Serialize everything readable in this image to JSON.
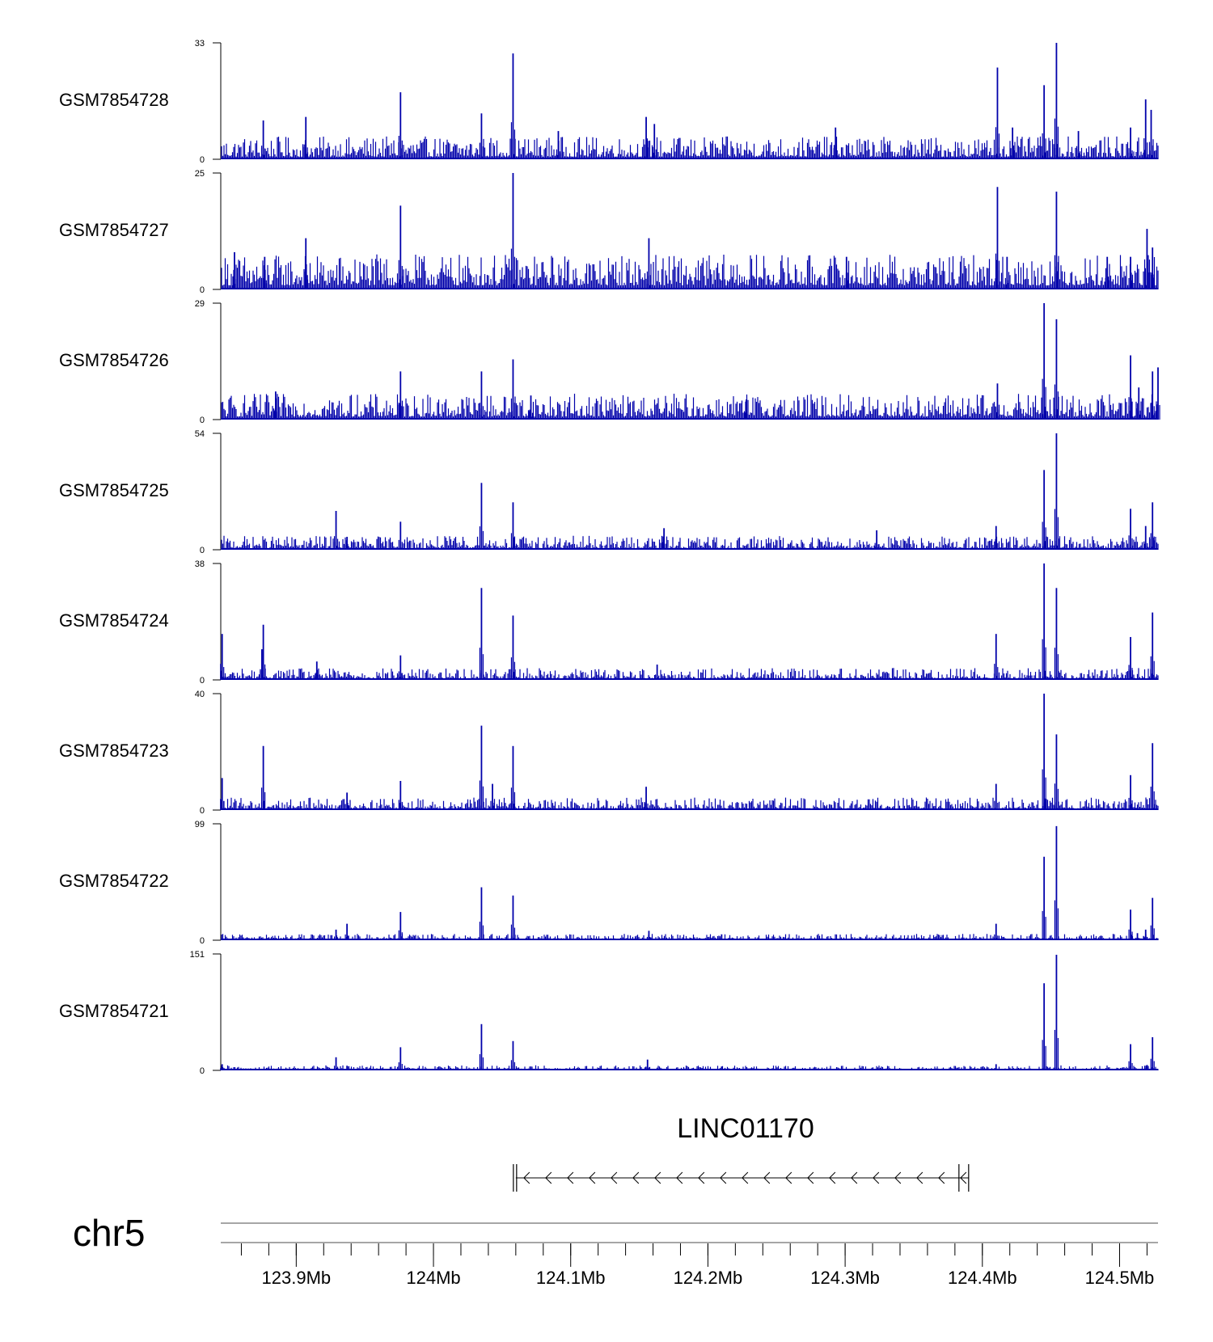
{
  "chart_data": {
    "type": "area",
    "title": "",
    "chromosome": "chr5",
    "x_range_mb": [
      123.845,
      124.528
    ],
    "x_ticks": [
      {
        "value": 123.9,
        "label": "123.9Mb"
      },
      {
        "value": 124.0,
        "label": "124Mb"
      },
      {
        "value": 124.1,
        "label": "124.1Mb"
      },
      {
        "value": 124.2,
        "label": "124.2Mb"
      },
      {
        "value": 124.3,
        "label": "124.3Mb"
      },
      {
        "value": 124.4,
        "label": "124.4Mb"
      },
      {
        "value": 124.5,
        "label": "124.5Mb"
      }
    ],
    "minor_tick_step_mb": 0.02,
    "series_color": "#0000aa",
    "axis_color": "#000000",
    "ideogram_color": "#888888",
    "gene": {
      "name": "LINC01170",
      "start_mb": 124.06,
      "end_mb": 124.39,
      "strand": "-"
    },
    "tracks": [
      {
        "name": "GSM7854728",
        "ymax": 33,
        "baseline": 3.0,
        "peaks": [
          [
            123.876,
            11
          ],
          [
            123.907,
            12
          ],
          [
            123.976,
            19
          ],
          [
            124.035,
            13
          ],
          [
            124.058,
            30
          ],
          [
            124.091,
            8
          ],
          [
            124.155,
            12
          ],
          [
            124.161,
            10
          ],
          [
            124.293,
            9
          ],
          [
            124.411,
            26
          ],
          [
            124.422,
            9
          ],
          [
            124.445,
            21
          ],
          [
            124.454,
            33
          ],
          [
            124.47,
            8
          ],
          [
            124.508,
            9
          ],
          [
            124.519,
            17
          ],
          [
            124.523,
            14
          ]
        ]
      },
      {
        "name": "GSM7854727",
        "ymax": 25,
        "baseline": 3.5,
        "peaks": [
          [
            123.855,
            8
          ],
          [
            123.877,
            7
          ],
          [
            123.907,
            11
          ],
          [
            123.976,
            18
          ],
          [
            124.058,
            25
          ],
          [
            124.157,
            11
          ],
          [
            124.301,
            7
          ],
          [
            124.411,
            22
          ],
          [
            124.418,
            7
          ],
          [
            124.454,
            21
          ],
          [
            124.491,
            7
          ],
          [
            124.508,
            7
          ],
          [
            124.52,
            13
          ],
          [
            124.524,
            9
          ]
        ]
      },
      {
        "name": "GSM7854726",
        "ymax": 29,
        "baseline": 3.0,
        "peaks": [
          [
            123.885,
            7
          ],
          [
            123.976,
            12
          ],
          [
            124.035,
            12
          ],
          [
            124.058,
            15
          ],
          [
            124.071,
            6
          ],
          [
            124.228,
            5
          ],
          [
            124.411,
            9
          ],
          [
            124.445,
            29
          ],
          [
            124.454,
            25
          ],
          [
            124.508,
            16
          ],
          [
            124.514,
            8
          ],
          [
            124.524,
            12
          ],
          [
            124.528,
            13
          ]
        ]
      },
      {
        "name": "GSM7854725",
        "ymax": 54,
        "baseline": 3.0,
        "peaks": [
          [
            123.929,
            18
          ],
          [
            123.937,
            6
          ],
          [
            123.976,
            13
          ],
          [
            124.035,
            31
          ],
          [
            124.058,
            22
          ],
          [
            124.168,
            10
          ],
          [
            124.323,
            9
          ],
          [
            124.41,
            11
          ],
          [
            124.445,
            37
          ],
          [
            124.454,
            54
          ],
          [
            124.508,
            19
          ],
          [
            124.519,
            11
          ],
          [
            124.524,
            22
          ]
        ]
      },
      {
        "name": "GSM7854724",
        "ymax": 38,
        "baseline": 1.8,
        "peaks": [
          [
            123.846,
            15
          ],
          [
            123.875,
            10
          ],
          [
            123.876,
            18
          ],
          [
            123.915,
            6
          ],
          [
            123.976,
            8
          ],
          [
            124.035,
            30
          ],
          [
            124.058,
            21
          ],
          [
            124.163,
            5
          ],
          [
            124.41,
            15
          ],
          [
            124.445,
            38
          ],
          [
            124.454,
            30
          ],
          [
            124.508,
            14
          ],
          [
            124.524,
            22
          ]
        ]
      },
      {
        "name": "GSM7854723",
        "ymax": 40,
        "baseline": 2.0,
        "peaks": [
          [
            123.846,
            11
          ],
          [
            123.876,
            22
          ],
          [
            123.937,
            6
          ],
          [
            123.976,
            10
          ],
          [
            124.035,
            29
          ],
          [
            124.043,
            9
          ],
          [
            124.058,
            22
          ],
          [
            124.155,
            8
          ],
          [
            124.41,
            9
          ],
          [
            124.445,
            40
          ],
          [
            124.454,
            26
          ],
          [
            124.508,
            12
          ],
          [
            124.524,
            23
          ]
        ]
      },
      {
        "name": "GSM7854722",
        "ymax": 99,
        "baseline": 2.5,
        "peaks": [
          [
            123.929,
            9
          ],
          [
            123.937,
            14
          ],
          [
            123.976,
            24
          ],
          [
            124.035,
            45
          ],
          [
            124.058,
            38
          ],
          [
            124.157,
            8
          ],
          [
            124.21,
            5
          ],
          [
            124.41,
            14
          ],
          [
            124.445,
            71
          ],
          [
            124.454,
            97
          ],
          [
            124.508,
            26
          ],
          [
            124.513,
            6
          ],
          [
            124.519,
            9
          ],
          [
            124.524,
            36
          ]
        ]
      },
      {
        "name": "GSM7854721",
        "ymax": 151,
        "baseline": 3.0,
        "peaks": [
          [
            123.846,
            8
          ],
          [
            123.929,
            17
          ],
          [
            123.937,
            6
          ],
          [
            123.976,
            30
          ],
          [
            124.035,
            60
          ],
          [
            124.058,
            38
          ],
          [
            124.156,
            14
          ],
          [
            124.21,
            5
          ],
          [
            124.41,
            8
          ],
          [
            124.445,
            113
          ],
          [
            124.454,
            150
          ],
          [
            124.508,
            34
          ],
          [
            124.52,
            7
          ],
          [
            124.524,
            43
          ]
        ]
      }
    ]
  }
}
